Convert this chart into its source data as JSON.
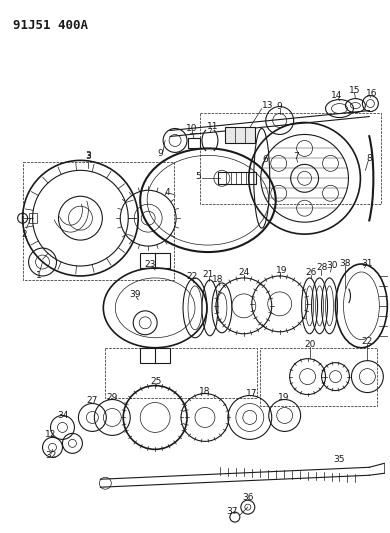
{
  "title": "91J51 400A",
  "bg_color": "#ffffff",
  "line_color": "#1a1a1a",
  "fig_width": 3.9,
  "fig_height": 5.33,
  "dpi": 100
}
